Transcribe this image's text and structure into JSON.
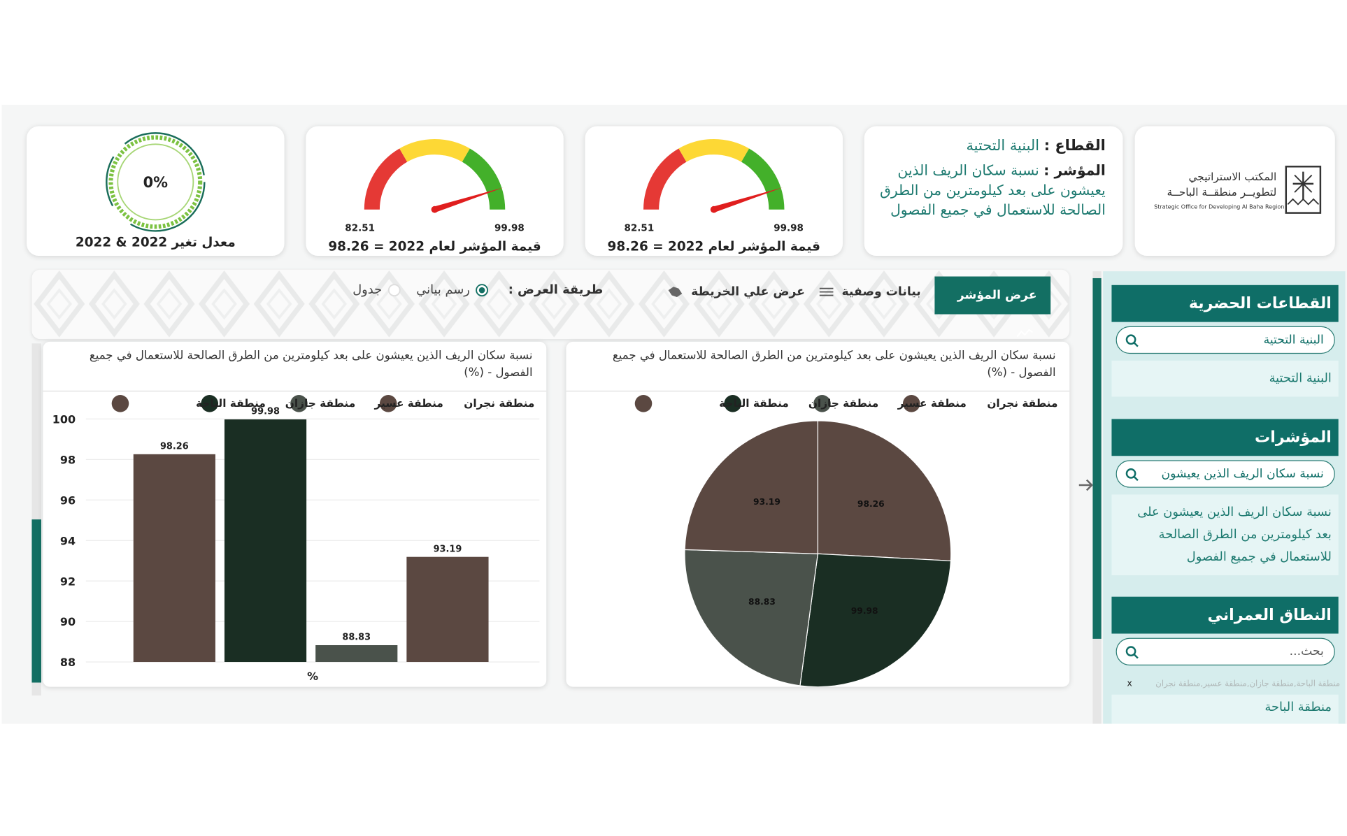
{
  "logo": {
    "line1": "المكتب الاستراتيجي",
    "line2": "لتطويــر منطقــة الباحــة",
    "english": "Strategic Office for Developing Al Baha Region"
  },
  "info": {
    "sector_label": "القطاع :",
    "sector": "البنية التحتية",
    "indicator_label": "المؤشر :",
    "indicator": "نسبة سكان الريف الذين يعيشون على بعد كيلومترين من الطرق الصالحة للاستعمال في جميع الفصول"
  },
  "gauges": [
    {
      "min": 82.51,
      "max": 99.98,
      "value": 98.26,
      "caption": "قيمة المؤشر لعام 2022 = 98.26"
    },
    {
      "min": 82.51,
      "max": 99.98,
      "value": 98.26,
      "caption": "قيمة المؤشر لعام 2022 = 98.26"
    }
  ],
  "change": {
    "value": 0,
    "value_label": "0%",
    "caption": "معدل تغير 2022 & 2022"
  },
  "toolbar": {
    "show_indicator": "عرض المؤشر",
    "metadata": "بيانات وصفية",
    "map": "عرض علي الخريطة",
    "display_mode_label": "طريقة العرض :",
    "options": [
      "رسم بياني",
      "جدول"
    ],
    "selected": 0
  },
  "sidebar": {
    "sections": [
      {
        "title": "القطاعات الحضرية",
        "search": "البنية التحتية",
        "items": [
          "البنية التحتية"
        ]
      },
      {
        "title": "المؤشرات",
        "search": "نسبة سكان الريف الذين يعيشون",
        "items": [
          "نسبة سكان الريف الذين يعيشون على بعد كيلومترين من الطرق الصالحة للاستعمال في جميع الفصول"
        ]
      },
      {
        "title": "النطاق العمراني",
        "search_placeholder": "بحث...",
        "selected_tags": "منطقة الباحة,منطقة جازان,منطقة عسير,منطقة نجران",
        "clear": "x",
        "items": [
          "منطقة الباحة"
        ]
      }
    ]
  },
  "chart_data": [
    {
      "type": "bar",
      "title": "نسبة سكان الريف الذين يعيشون على بعد كيلومترين من الطرق الصالحة للاستعمال في جميع الفصول - (%)",
      "categories": [
        "منطقة نجران",
        "منطقة عسير",
        "منطقة جازان",
        "منطقة الباحة"
      ],
      "values": [
        93.19,
        88.83,
        99.98,
        98.26
      ],
      "colors": [
        "#5b4841",
        "#4a524b",
        "#1a2e23",
        "#5b4841"
      ],
      "x_label": "%",
      "ylim": [
        88,
        100
      ],
      "yticks": [
        88,
        90,
        92,
        94,
        96,
        98,
        100
      ],
      "grid": true
    },
    {
      "type": "pie",
      "title": "نسبة سكان الريف الذين يعيشون على بعد كيلومترين من الطرق الصالحة للاستعمال في جميع الفصول - (%)",
      "categories": [
        "منطقة نجران",
        "منطقة عسير",
        "منطقة جازان",
        "منطقة الباحة"
      ],
      "values": [
        93.19,
        88.83,
        99.98,
        98.26
      ],
      "colors": [
        "#5b4841",
        "#4a524b",
        "#1a2e23",
        "#5b4841"
      ]
    }
  ]
}
